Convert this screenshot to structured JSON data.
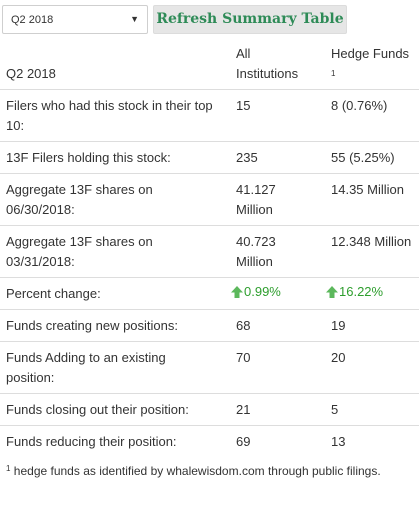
{
  "controls": {
    "period_select_value": "Q2 2018",
    "refresh_button_label": "Refresh Summary Table"
  },
  "table": {
    "header": {
      "period": "Q2 2018",
      "all_institutions": "All Institutions",
      "hedge_funds": "Hedge Funds",
      "hedge_funds_note_marker": "1"
    },
    "rows": [
      {
        "label": "Filers who had this stock in their top 10:",
        "all": "15",
        "hedge": "8 (0.76%)"
      },
      {
        "label": "13F Filers holding this stock:",
        "all": "235",
        "hedge": "55 (5.25%)"
      },
      {
        "label": "Aggregate 13F shares on 06/30/2018:",
        "all": "41.127 Million",
        "hedge": "14.35 Million"
      },
      {
        "label": "Aggregate 13F shares on 03/31/2018:",
        "all": "40.723 Million",
        "hedge": "12.348 Million"
      },
      {
        "label": "Percent change:",
        "all": "0.99%",
        "hedge": "16.22%"
      },
      {
        "label": "Funds creating new positions:",
        "all": "68",
        "hedge": "19"
      },
      {
        "label": "Funds Adding to an existing position:",
        "all": "70",
        "hedge": "20"
      },
      {
        "label": "Funds closing out their position:",
        "all": "21",
        "hedge": "5"
      },
      {
        "label": "Funds reducing their position:",
        "all": "69",
        "hedge": "13"
      }
    ]
  },
  "footnote": {
    "marker": "1",
    "text": "hedge funds as identified by whalewisdom.com through public filings."
  },
  "colors": {
    "button_text": "#2e8b57",
    "positive": "#2e9e2e",
    "arrow": "#5cb85c"
  },
  "icons": {
    "dropdown": "chevron-down-icon",
    "increase": "arrow-up-icon"
  }
}
